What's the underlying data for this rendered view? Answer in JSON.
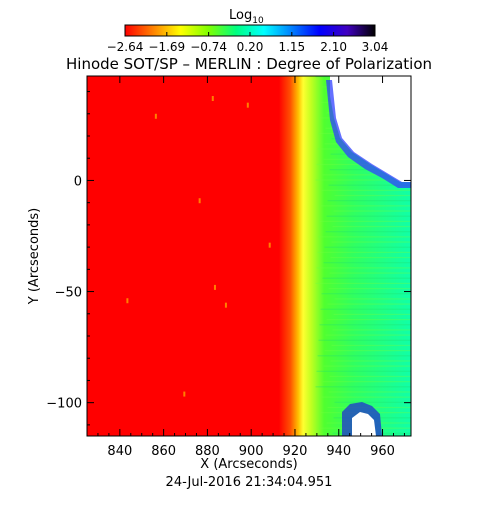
{
  "chart_data": {
    "type": "heatmap",
    "title": "Hinode SOT/SP – MERLIN : Degree of Polarization",
    "xlabel": "X (Arcseconds)",
    "ylabel": "Y (Arcseconds)",
    "xlim": [
      825,
      973
    ],
    "ylim": [
      -115,
      47
    ],
    "x_ticks": [
      840,
      860,
      880,
      900,
      920,
      940,
      960
    ],
    "y_ticks": [
      0,
      -50,
      -100
    ],
    "colorbar": {
      "label_main": "Log",
      "label_sub": "10",
      "tick_values": [
        -2.64,
        -1.69,
        -0.74,
        0.2,
        1.15,
        2.1,
        3.04
      ],
      "tick_labels": [
        "-2.64",
        "-1.69",
        "-0.74",
        "0.20",
        "1.15",
        "2.10",
        "3.04"
      ],
      "range": [
        -2.64,
        3.04
      ],
      "colors": [
        "#ff0000",
        "#ff8000",
        "#ffff00",
        "#80ff00",
        "#00ff80",
        "#00ffff",
        "#0080ff",
        "#0000ff",
        "#4000c0",
        "#000000"
      ]
    },
    "limb_x": 923,
    "date": "24-Jul-2016 21:34:04.951"
  }
}
